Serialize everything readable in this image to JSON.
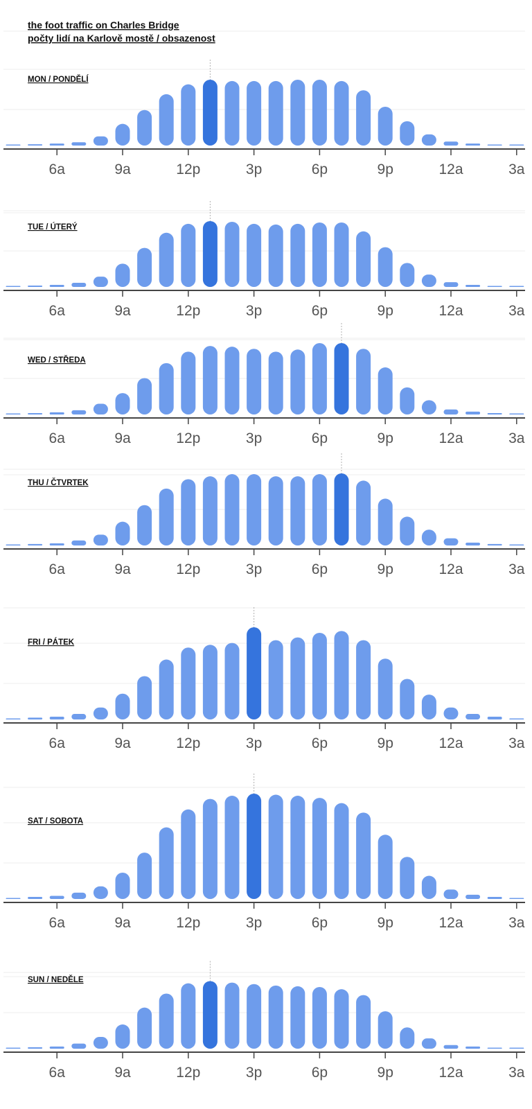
{
  "chart_data": {
    "type": "bar",
    "title": "the foot traffic on Charles Bridge",
    "subtitle": "počty lidí na Karlově mostě / obsazenost",
    "tick_labels": [
      "6a",
      "9a",
      "12p",
      "3p",
      "6p",
      "9p",
      "12a",
      "3a"
    ],
    "x_hours_start": 4,
    "x_hours_count": 24,
    "ylim": [
      0,
      100
    ],
    "colors": {
      "bar": "#6e9cec",
      "highlight": "#3574dd",
      "grid": "#ececec",
      "axis": "#444444"
    },
    "days": [
      {
        "label": "MON / PONDĚLÍ",
        "highlight_index": 9,
        "values": [
          1,
          2,
          3,
          5,
          14,
          33,
          54,
          78,
          93,
          100,
          98,
          98,
          98,
          100,
          100,
          98,
          84,
          59,
          37,
          17,
          6,
          3,
          1,
          1
        ]
      },
      {
        "label": "TUE / ÚTERÝ",
        "highlight_index": 9,
        "values": [
          1,
          2,
          3,
          6,
          15,
          34,
          57,
          79,
          92,
          96,
          95,
          92,
          91,
          92,
          94,
          94,
          81,
          58,
          35,
          18,
          7,
          3,
          1,
          1
        ]
      },
      {
        "label": "WED / STŘEDA",
        "highlight_index": 15,
        "values": [
          1,
          2,
          3,
          6,
          15,
          30,
          51,
          72,
          88,
          96,
          95,
          92,
          88,
          91,
          100,
          100,
          92,
          66,
          38,
          20,
          7,
          4,
          2,
          1
        ]
      },
      {
        "label": "THU / ČTVRTEK",
        "highlight_index": 15,
        "values": [
          1,
          2,
          3,
          7,
          15,
          33,
          56,
          79,
          92,
          96,
          99,
          99,
          96,
          96,
          99,
          100,
          90,
          65,
          40,
          22,
          10,
          4,
          2,
          1
        ]
      },
      {
        "label": "FRI / PÁTEK",
        "highlight_index": 11,
        "values": [
          1,
          2,
          3,
          6,
          13,
          28,
          47,
          65,
          78,
          81,
          83,
          100,
          86,
          89,
          94,
          96,
          86,
          66,
          44,
          27,
          13,
          6,
          3,
          1
        ]
      },
      {
        "label": "SAT / SOBOTA",
        "highlight_index": 11,
        "values": [
          1,
          2,
          3,
          6,
          12,
          25,
          44,
          68,
          85,
          95,
          98,
          100,
          99,
          98,
          96,
          91,
          82,
          61,
          40,
          22,
          9,
          4,
          2,
          1
        ]
      },
      {
        "label": "SUN / NEDĚLE",
        "highlight_index": 9,
        "values": [
          1,
          2,
          3,
          7,
          16,
          33,
          56,
          75,
          89,
          92,
          90,
          88,
          86,
          85,
          84,
          81,
          73,
          51,
          29,
          14,
          5,
          3,
          1,
          1
        ]
      }
    ]
  }
}
